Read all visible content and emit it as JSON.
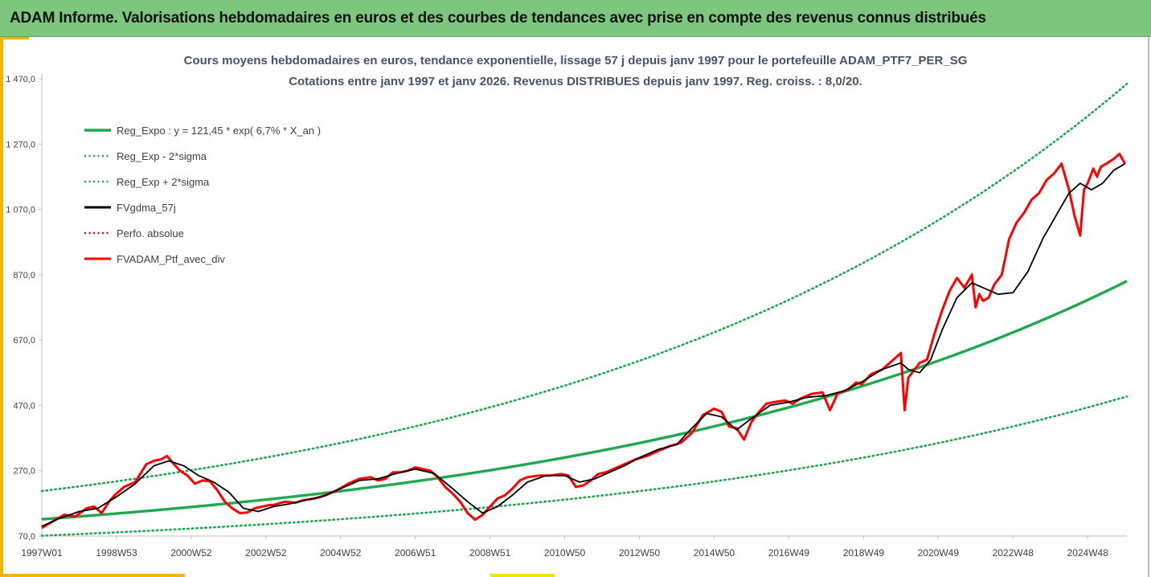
{
  "header": {
    "title": "ADAM Informe. Valorisations hebdomadaires en euros et des courbes de tendances avec prise en compte des revenus connus distribués"
  },
  "chart_data": {
    "type": "line",
    "title": "Cours moyens hebdomadaires  en euros, tendance exponentielle, lissage 57 j depuis janv 1997 pour le portefeuille ADAM_PTF7_PER_SG",
    "subtitle": "Cotations  entre janv 1997 et janv 2026. Revenus DISTRIBUES depuis janv 1997. Reg. croiss. : 8,0/20.",
    "x_range": [
      1997.0,
      2026.05
    ],
    "ylim": [
      70,
      1470
    ],
    "y_ticks": [
      70,
      270,
      470,
      670,
      870,
      1070,
      1270,
      1470
    ],
    "y_tick_labels": [
      "70,0",
      "270,0",
      "470,0",
      "670,0",
      "870,0",
      "1 070,0",
      "1 270,0",
      "1 470,0"
    ],
    "x_tick_labels": [
      "1997W01",
      "1998W53",
      "2000W52",
      "2002W52",
      "2004W52",
      "2006W51",
      "2008W51",
      "2010W50",
      "2012W50",
      "2014W50",
      "2016W49",
      "2018W49",
      "2020W49",
      "2022W48",
      "2024W48"
    ],
    "x_tick_years": [
      1997.0,
      1999.0,
      2001.0,
      2003.0,
      2005.0,
      2007.0,
      2009.0,
      2011.0,
      2013.0,
      2015.0,
      2017.0,
      2019.0,
      2021.0,
      2023.0,
      2025.0
    ],
    "legend_position": "top-left",
    "regression": {
      "a": 121.45,
      "rate_pct": 6.7,
      "sigma_ratio": 1.71
    },
    "series": [
      {
        "name": "Reg_Expo : y = 121,45 * exp( 6,7% *  X_an )",
        "color": "#1fa84f",
        "style": "solid",
        "kind": "reg"
      },
      {
        "name": "Reg_Exp - 2*sigma",
        "color": "#1fa84f",
        "style": "dotted",
        "kind": "reg_low"
      },
      {
        "name": "Reg_Exp + 2*sigma",
        "color": "#1fa84f",
        "style": "dotted",
        "kind": "reg_high"
      },
      {
        "name": "FVgdma_57j",
        "color": "#000000",
        "style": "solid",
        "kind": "smooth"
      },
      {
        "name": "Perfo. absolue",
        "color": "#ff0000",
        "style": "dotted",
        "kind": "perfo"
      },
      {
        "name": "FVADAM_Ptf_avec_div",
        "color": "#ff0000",
        "style": "solid",
        "kind": "price"
      }
    ],
    "price": {
      "x": [
        1997.0,
        1997.3,
        1997.6,
        1997.9,
        1998.2,
        1998.4,
        1998.6,
        1998.8,
        1998.95,
        1999.2,
        1999.5,
        1999.8,
        2000.0,
        2000.2,
        2000.35,
        2000.5,
        2000.7,
        2000.9,
        2001.1,
        2001.3,
        2001.5,
        2001.7,
        2001.9,
        2002.1,
        2002.3,
        2002.5,
        2002.7,
        2002.9,
        2003.1,
        2003.2,
        2003.5,
        2003.8,
        2004.0,
        2004.3,
        2004.6,
        2004.9,
        2005.2,
        2005.5,
        2005.8,
        2006.0,
        2006.2,
        2006.4,
        2006.6,
        2006.8,
        2007.0,
        2007.2,
        2007.4,
        2007.6,
        2007.8,
        2008.0,
        2008.2,
        2008.4,
        2008.6,
        2008.8,
        2009.0,
        2009.2,
        2009.4,
        2009.6,
        2009.8,
        2010.0,
        2010.3,
        2010.6,
        2010.9,
        2011.1,
        2011.3,
        2011.5,
        2011.7,
        2011.9,
        2012.1,
        2012.3,
        2012.6,
        2012.9,
        2013.2,
        2013.5,
        2013.8,
        2014.1,
        2014.4,
        2014.7,
        2015.0,
        2015.2,
        2015.4,
        2015.6,
        2015.8,
        2016.0,
        2016.2,
        2016.4,
        2016.6,
        2016.9,
        2017.1,
        2017.3,
        2017.6,
        2017.9,
        2018.1,
        2018.3,
        2018.6,
        2018.8,
        2018.95,
        2019.2,
        2019.5,
        2019.8,
        2020.0,
        2020.1,
        2020.2,
        2020.3,
        2020.5,
        2020.7,
        2020.9,
        2021.1,
        2021.3,
        2021.5,
        2021.7,
        2021.9,
        2022.0,
        2022.1,
        2022.2,
        2022.35,
        2022.5,
        2022.7,
        2022.9,
        2023.1,
        2023.3,
        2023.5,
        2023.7,
        2023.9,
        2024.1,
        2024.3,
        2024.5,
        2024.65,
        2024.8,
        2024.9,
        2025.0,
        2025.15,
        2025.25,
        2025.35,
        2025.5,
        2025.7,
        2025.85,
        2026.0
      ],
      "y": [
        95,
        115,
        135,
        130,
        155,
        160,
        140,
        175,
        195,
        220,
        235,
        290,
        300,
        305,
        315,
        295,
        270,
        255,
        230,
        240,
        238,
        210,
        175,
        155,
        140,
        142,
        155,
        160,
        165,
        165,
        175,
        172,
        180,
        185,
        195,
        210,
        230,
        245,
        250,
        240,
        245,
        265,
        265,
        270,
        280,
        275,
        270,
        250,
        220,
        200,
        175,
        140,
        120,
        135,
        160,
        185,
        195,
        215,
        240,
        250,
        255,
        255,
        260,
        255,
        220,
        225,
        240,
        260,
        265,
        275,
        290,
        305,
        315,
        330,
        345,
        355,
        385,
        440,
        460,
        450,
        405,
        400,
        365,
        420,
        450,
        475,
        480,
        485,
        475,
        490,
        505,
        510,
        455,
        505,
        520,
        540,
        535,
        565,
        580,
        610,
        630,
        455,
        555,
        570,
        600,
        610,
        690,
        760,
        820,
        860,
        830,
        870,
        770,
        810,
        790,
        800,
        840,
        870,
        980,
        1030,
        1060,
        1100,
        1120,
        1160,
        1180,
        1210,
        1130,
        1050,
        990,
        1130,
        1150,
        1195,
        1170,
        1200,
        1210,
        1225,
        1240,
        1210
      ]
    },
    "smooth": {
      "x": [
        1997.0,
        1997.5,
        1998.0,
        1998.5,
        1999.0,
        1999.5,
        2000.0,
        2000.4,
        2000.8,
        2001.2,
        2001.6,
        2002.0,
        2002.4,
        2002.8,
        2003.2,
        2003.6,
        2004.0,
        2004.5,
        2005.0,
        2005.5,
        2006.0,
        2006.5,
        2007.0,
        2007.5,
        2008.0,
        2008.4,
        2008.8,
        2009.2,
        2009.6,
        2010.0,
        2010.5,
        2011.0,
        2011.4,
        2011.8,
        2012.2,
        2012.6,
        2013.0,
        2013.5,
        2014.0,
        2014.4,
        2014.8,
        2015.2,
        2015.6,
        2016.0,
        2016.5,
        2017.0,
        2017.5,
        2018.0,
        2018.5,
        2019.0,
        2019.5,
        2020.0,
        2020.2,
        2020.5,
        2020.8,
        2021.1,
        2021.5,
        2021.9,
        2022.2,
        2022.6,
        2023.0,
        2023.4,
        2023.8,
        2024.2,
        2024.5,
        2024.8,
        2025.1,
        2025.4,
        2025.7,
        2026.0
      ],
      "y": [
        100,
        125,
        145,
        155,
        190,
        230,
        285,
        300,
        285,
        255,
        235,
        205,
        155,
        145,
        160,
        168,
        178,
        190,
        215,
        240,
        245,
        262,
        275,
        262,
        215,
        175,
        140,
        160,
        195,
        235,
        255,
        255,
        235,
        245,
        265,
        285,
        310,
        335,
        350,
        400,
        445,
        435,
        395,
        430,
        470,
        480,
        495,
        500,
        515,
        545,
        580,
        600,
        580,
        570,
        610,
        700,
        800,
        845,
        830,
        810,
        815,
        880,
        980,
        1060,
        1120,
        1150,
        1130,
        1150,
        1190,
        1210
      ]
    }
  }
}
